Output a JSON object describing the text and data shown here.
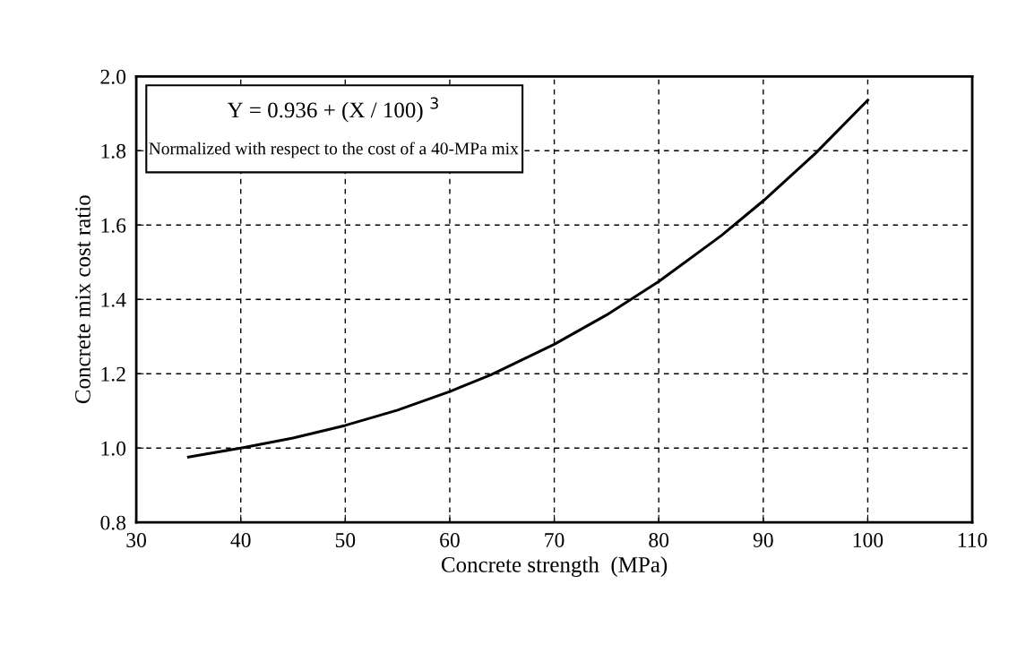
{
  "chart_data": {
    "type": "line",
    "xlabel": "Concrete strength  (MPa)",
    "ylabel": "Concrete mix cost ratio",
    "annotations": [
      "Y = 0.936 + (X / 100) $^{3}$",
      "Normalized with respect to the cost of a 40-MPa mix"
    ],
    "x": [
      35,
      40,
      45,
      50,
      55,
      60,
      64,
      70,
      75,
      80,
      86,
      90,
      95,
      100
    ],
    "series": [
      {
        "color": "#000000",
        "values": [
          0.976,
          1.0,
          1.027,
          1.061,
          1.102,
          1.152,
          1.198,
          1.279,
          1.358,
          1.448,
          1.572,
          1.665,
          1.793,
          1.936
        ]
      }
    ],
    "xlim": [
      30,
      110
    ],
    "xticks": [
      30,
      40,
      50,
      60,
      70,
      80,
      90,
      100,
      110
    ],
    "ylim": [
      0.8,
      2.0
    ],
    "yticks": [
      {
        "value": 0.8,
        "label": "0.8"
      },
      {
        "value": 1.0,
        "label": "1.0"
      },
      {
        "value": 1.2,
        "label": "1.2"
      },
      {
        "value": 1.4,
        "label": "1.4"
      },
      {
        "value": 1.6,
        "label": "1.6"
      },
      {
        "value": 1.8,
        "label": "1.8"
      },
      {
        "value": 2.0,
        "label": "2.0"
      }
    ],
    "grid": true,
    "line_style": "solid"
  }
}
